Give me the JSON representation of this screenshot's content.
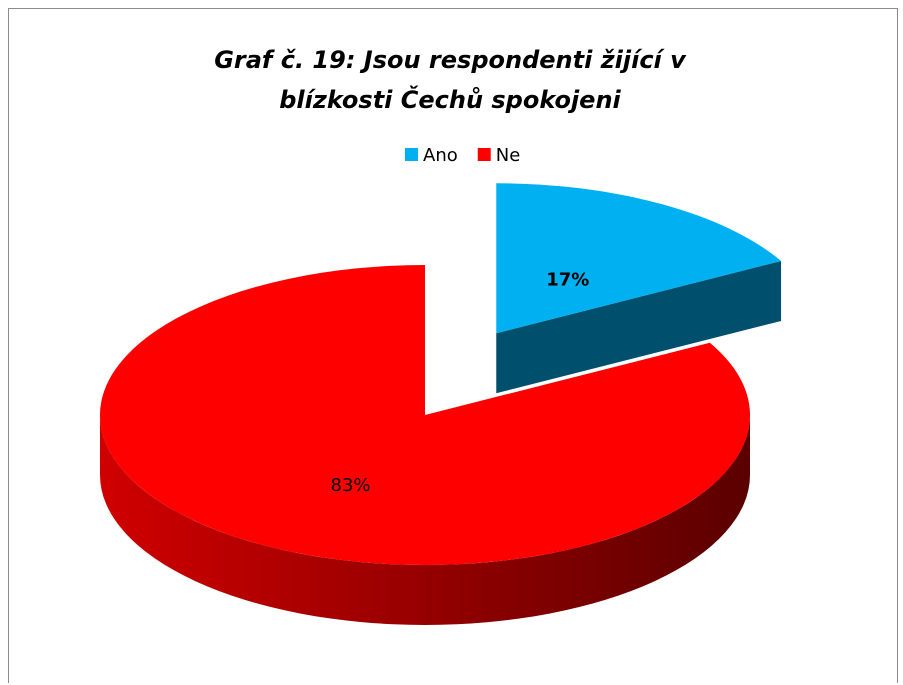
{
  "chart_data": {
    "type": "pie",
    "title": "Graf č. 19: Jsou respondenti žijící v blízkosti Čechů spokojeni",
    "categories": [
      "Ano",
      "Ne"
    ],
    "values": [
      17,
      83
    ],
    "value_labels": [
      "17%",
      "83%"
    ],
    "colors": [
      "#00b0f0",
      "#ff0000"
    ],
    "legend": "top"
  }
}
